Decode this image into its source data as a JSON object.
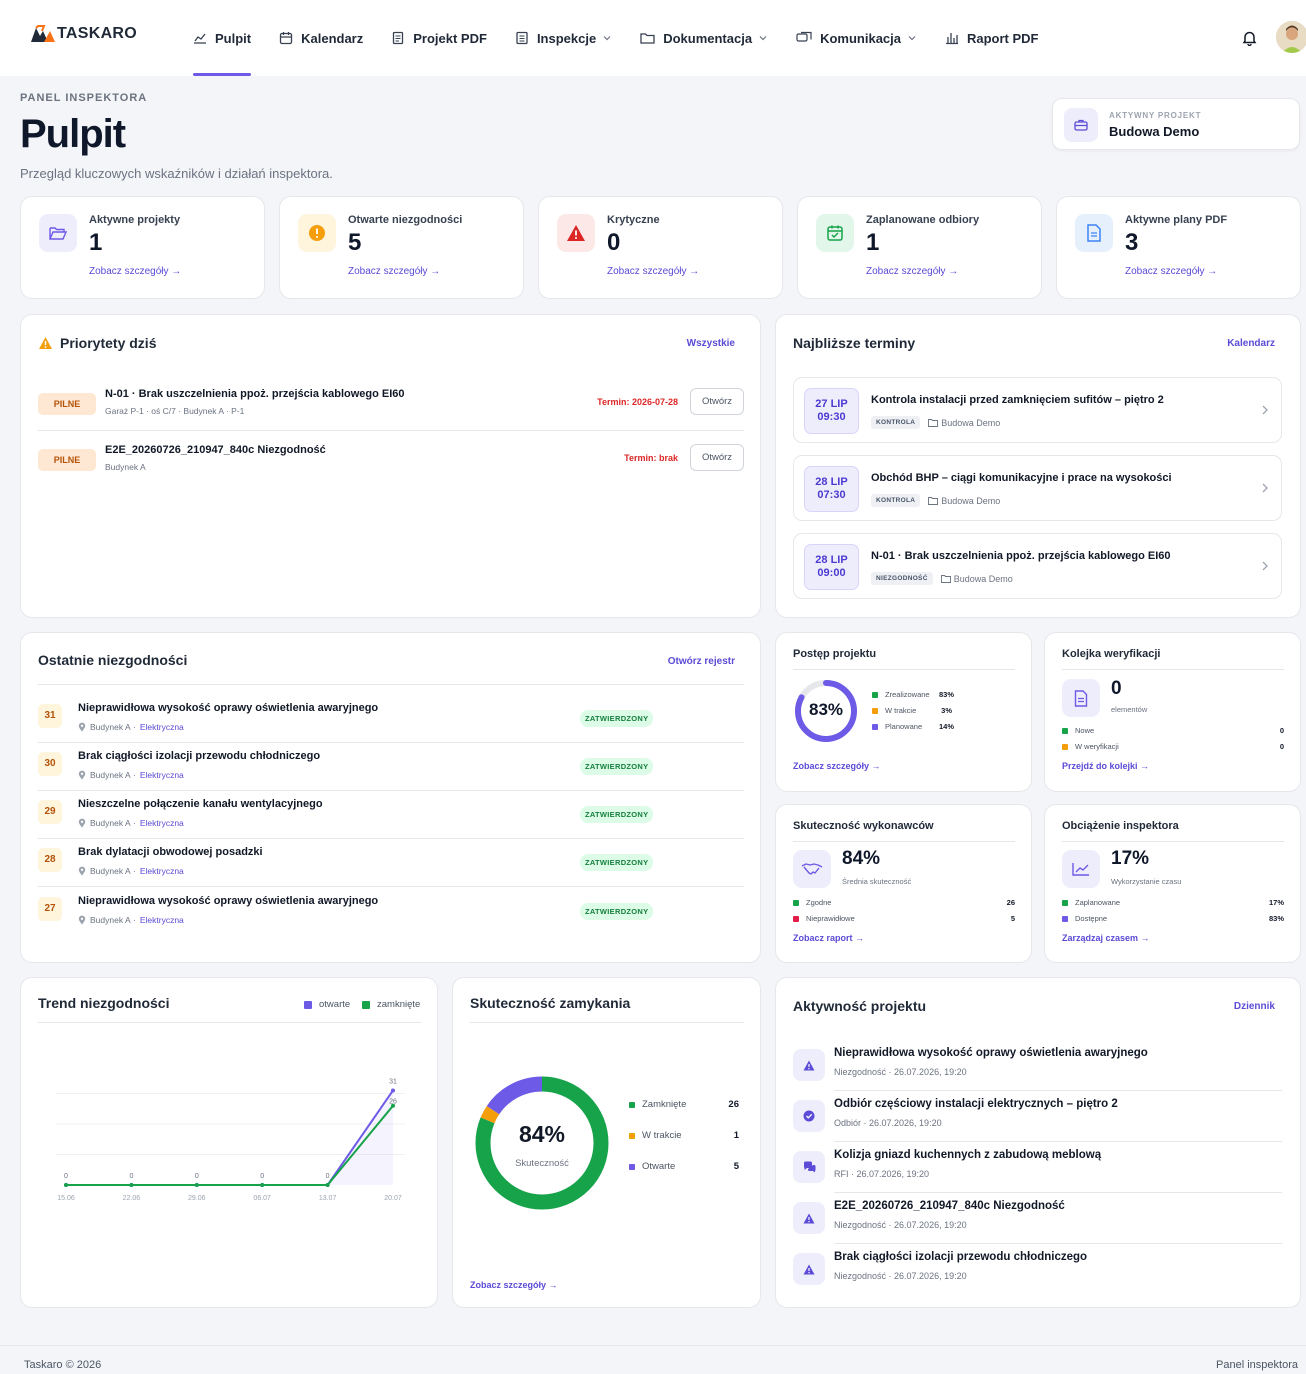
{
  "brand": {
    "name": "TASKARO"
  },
  "nav": [
    {
      "label": "Pulpit",
      "icon": "chart-icon",
      "active": true
    },
    {
      "label": "Kalendarz",
      "icon": "calendar-icon"
    },
    {
      "label": "Projekt PDF",
      "icon": "document-icon"
    },
    {
      "label": "Inspekcje",
      "icon": "list-icon",
      "dropdown": true
    },
    {
      "label": "Dokumentacja",
      "icon": "folder-icon",
      "dropdown": true
    },
    {
      "label": "Komunikacja",
      "icon": "chat-icon",
      "dropdown": true
    },
    {
      "label": "Raport PDF",
      "icon": "report-icon"
    }
  ],
  "header": {
    "eyebrow": "PANEL INSPEKTORA",
    "title": "Pulpit",
    "subtitle": "Przegląd kluczowych wskaźników i działań inspektora."
  },
  "active_project": {
    "label": "AKTYWNY PROJEKT",
    "name": "Budowa Demo"
  },
  "stats": [
    {
      "label": "Aktywne projekty",
      "value": "1",
      "link": "Zobacz szczegóły →",
      "color": "#6d5ae6",
      "bg": "#eeedfc",
      "icon": "folder-icon"
    },
    {
      "label": "Otwarte niezgodności",
      "value": "5",
      "link": "Zobacz szczegóły →",
      "color": "#f59e0b",
      "bg": "#fff4dc",
      "icon": "alert-circle-icon"
    },
    {
      "label": "Krytyczne",
      "value": "0",
      "link": "Zobacz szczegóły →",
      "color": "#dc2626",
      "bg": "#fde8e8",
      "icon": "warning-icon"
    },
    {
      "label": "Zaplanowane odbiory",
      "value": "1",
      "link": "Zobacz szczegóły →",
      "color": "#16a34a",
      "bg": "#e2f6ea",
      "icon": "calendar-check-icon"
    },
    {
      "label": "Aktywne plany PDF",
      "value": "3",
      "link": "Zobacz szczegóły →",
      "color": "#3b82f6",
      "bg": "#e6f0fd",
      "icon": "file-icon"
    }
  ],
  "priorities": {
    "title": "Priorytety dziś",
    "link": "Wszystkie",
    "items": [
      {
        "badge": "PILNE",
        "title": "N-01 · Brak uszczelnienia ppoż. przejścia kablowego EI60",
        "sub": "Garaż P-1 · oś C/7 · Budynek A · P-1",
        "due": "Termin: 2026-07-28",
        "action": "Otwórz"
      },
      {
        "badge": "PILNE",
        "title": "E2E_20260726_210947_840c Niezgodność",
        "sub": "Budynek A",
        "due": "Termin: brak",
        "action": "Otwórz"
      }
    ]
  },
  "deadlines": {
    "title": "Najbliższe terminy",
    "link": "Kalendarz",
    "items": [
      {
        "date": "27 LIP",
        "time": "09:30",
        "title": "Kontrola instalacji przed zamknięciem sufitów – piętro 2",
        "tag": "KONTROLA",
        "project": "Budowa Demo"
      },
      {
        "date": "28 LIP",
        "time": "07:30",
        "title": "Obchód BHP – ciągi komunikacyjne i prace na wysokości",
        "tag": "KONTROLA",
        "project": "Budowa Demo"
      },
      {
        "date": "28 LIP",
        "time": "09:00",
        "title": "N-01 · Brak uszczelnienia ppoż. przejścia kablowego EI60",
        "tag": "NIEZGODNOŚĆ",
        "project": "Budowa Demo"
      }
    ]
  },
  "recent": {
    "title": "Ostatnie niezgodności",
    "link": "Otwórz rejestr",
    "items": [
      {
        "num": "31",
        "title": "Nieprawidłowa wysokość oprawy oświetlenia awaryjnego",
        "location": "Budynek A",
        "category": "Elektryczna",
        "status": "ZATWIERDZONY"
      },
      {
        "num": "30",
        "title": "Brak ciągłości izolacji przewodu chłodniczego",
        "location": "Budynek A",
        "category": "Elektryczna",
        "status": "ZATWIERDZONY"
      },
      {
        "num": "29",
        "title": "Nieszczelne połączenie kanału wentylacyjnego",
        "location": "Budynek A",
        "category": "Elektryczna",
        "status": "ZATWIERDZONY"
      },
      {
        "num": "28",
        "title": "Brak dylatacji obwodowej posadzki",
        "location": "Budynek A",
        "category": "Elektryczna",
        "status": "ZATWIERDZONY"
      },
      {
        "num": "27",
        "title": "Nieprawidłowa wysokość oprawy oświetlenia awaryjnego",
        "location": "Budynek A",
        "category": "Elektryczna",
        "status": "ZATWIERDZONY"
      }
    ]
  },
  "progress": {
    "title": "Postęp projektu",
    "percent": "83%",
    "fraction": 0.83,
    "legend": [
      {
        "label": "Zrealizowane",
        "value": "83%",
        "color": "#16a34a"
      },
      {
        "label": "W trakcie",
        "value": "3%",
        "color": "#f59e0b"
      },
      {
        "label": "Planowane",
        "value": "14%",
        "color": "#6d5ae6"
      }
    ],
    "link": "Zobacz szczegóły →"
  },
  "queue": {
    "title": "Kolejka weryfikacji",
    "value": "0",
    "unit": "elementów",
    "legend": [
      {
        "label": "Nowe",
        "value": "0",
        "color": "#16a34a"
      },
      {
        "label": "W weryfikacji",
        "value": "0",
        "color": "#f59e0b"
      }
    ],
    "link": "Przejdź do kolejki →"
  },
  "contractors": {
    "title": "Skuteczność wykonawców",
    "value": "84%",
    "unit": "Średnia skuteczność",
    "legend": [
      {
        "label": "Zgodne",
        "value": "26",
        "color": "#16a34a"
      },
      {
        "label": "Nieprawidłowe",
        "value": "5",
        "color": "#e11d48"
      }
    ],
    "link": "Zobacz raport →"
  },
  "workload": {
    "title": "Obciążenie inspektora",
    "value": "17%",
    "unit": "Wykorzystanie czasu",
    "legend": [
      {
        "label": "Zaplanowane",
        "value": "17%",
        "color": "#16a34a"
      },
      {
        "label": "Dostępne",
        "value": "83%",
        "color": "#6d5ae6"
      }
    ],
    "link": "Zarządzaj czasem →"
  },
  "trend": {
    "title": "Trend niezgodności",
    "legend_open": "otwarte",
    "legend_closed": "zamknięte",
    "color_open": "#6d5ae6",
    "color_closed": "#16a34a"
  },
  "closing": {
    "title": "Skuteczność zamykania",
    "center_value": "84%",
    "center_label": "Skuteczność",
    "legend": [
      {
        "label": "Zamknięte",
        "value": "26",
        "color": "#16a34a"
      },
      {
        "label": "W trakcie",
        "value": "1",
        "color": "#f59e0b"
      },
      {
        "label": "Otwarte",
        "value": "5",
        "color": "#6d5ae6"
      }
    ],
    "link": "Zobacz szczegóły →"
  },
  "activity": {
    "title": "Aktywność projektu",
    "link": "Dziennik",
    "items": [
      {
        "title": "Nieprawidłowa wysokość oprawy oświetlenia awaryjnego",
        "sub": "Niezgodność · 26.07.2026, 19:20",
        "icon": "warning-icon"
      },
      {
        "title": "Odbiór częściowy instalacji elektrycznych – piętro 2",
        "sub": "Odbiór · 26.07.2026, 19:20",
        "icon": "check-circle-icon"
      },
      {
        "title": "Kolizja gniazd kuchennych z zabudową meblową",
        "sub": "RFI · 26.07.2026, 19:20",
        "icon": "chat-icon"
      },
      {
        "title": "E2E_20260726_210947_840c Niezgodność",
        "sub": "Niezgodność · 26.07.2026, 19:20",
        "icon": "warning-icon"
      },
      {
        "title": "Brak ciągłości izolacji przewodu chłodniczego",
        "sub": "Niezgodność · 26.07.2026, 19:20",
        "icon": "warning-icon"
      }
    ]
  },
  "footer": {
    "left": "Taskaro © 2026",
    "right": "Panel inspektora"
  },
  "chart_data": [
    {
      "type": "line",
      "x": [
        "15.06",
        "22.06",
        "29.06",
        "06.07",
        "13.07",
        "20.07"
      ],
      "series": [
        {
          "name": "otwarte",
          "values": [
            0,
            0,
            0,
            0,
            0,
            31
          ]
        },
        {
          "name": "zamknięte",
          "values": [
            0,
            0,
            0,
            0,
            0,
            26
          ]
        }
      ],
      "title": "Trend niezgodności",
      "xlabel": "",
      "ylabel": "",
      "ylim": [
        0,
        40
      ],
      "grid": true,
      "legend": "top-right"
    },
    {
      "type": "pie",
      "categories": [
        "Zamknięte",
        "W trakcie",
        "Otwarte"
      ],
      "values": [
        26,
        1,
        5
      ],
      "title": "Skuteczność zamykania",
      "legend": "right"
    }
  ]
}
